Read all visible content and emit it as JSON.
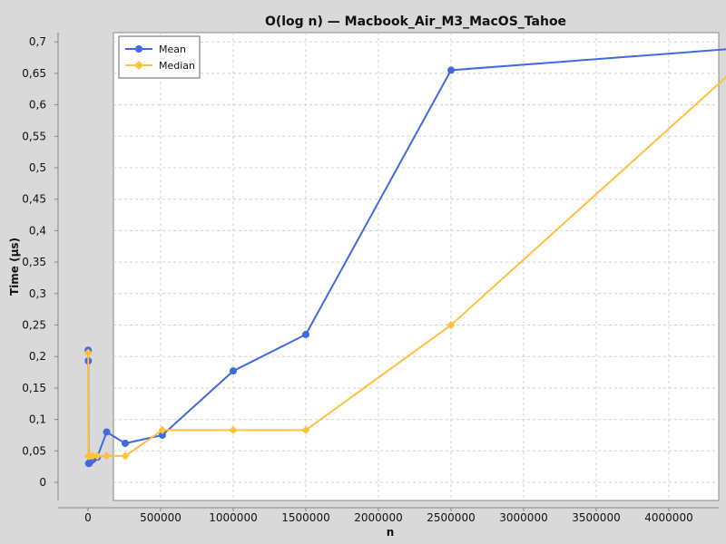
{
  "chart_data": {
    "type": "line",
    "title": "O(log n) — Macbook_Air_M3_MacOS_Tahoe",
    "xlabel": "n",
    "ylabel": "Time (µs)",
    "xlim": [
      0,
      4700000
    ],
    "ylim": [
      0,
      0.73
    ],
    "x_ticks": [
      0,
      500000,
      1000000,
      1500000,
      2000000,
      2500000,
      3000000,
      3500000,
      4000000
    ],
    "x_tick_labels": [
      "0",
      "500000",
      "1000000",
      "1500000",
      "2000000",
      "2500000",
      "3000000",
      "3500000",
      "4000000"
    ],
    "y_ticks": [
      0,
      0.05,
      0.1,
      0.15,
      0.2,
      0.25,
      0.3,
      0.35,
      0.4,
      0.45,
      0.5,
      0.55,
      0.6,
      0.65,
      0.7
    ],
    "y_tick_labels": [
      "0",
      "0,05",
      "0,1",
      "0,15",
      "0,2",
      "0,25",
      "0,3",
      "0,35",
      "0,4",
      "0,45",
      "0,5",
      "0,55",
      "0,6",
      "0,65",
      "0,7"
    ],
    "grid": true,
    "legend_position": "top-left",
    "series": [
      {
        "name": "Mean",
        "color": "#4169e1",
        "marker": "circle",
        "x": [
          1000,
          2000,
          4000,
          8000,
          16000,
          32000,
          64000,
          128000,
          256000,
          512000,
          1000000,
          1500000,
          2500000,
          4500000
        ],
        "y": [
          0.21,
          0.193,
          0.03,
          0.03,
          0.033,
          0.036,
          0.04,
          0.08,
          0.062,
          0.075,
          0.177,
          0.235,
          0.655,
          0.69
        ]
      },
      {
        "name": "Median",
        "color": "#ffc03a",
        "marker": "diamond",
        "x": [
          1000,
          2000,
          4000,
          8000,
          16000,
          32000,
          64000,
          128000,
          256000,
          512000,
          1000000,
          1500000,
          2500000,
          4500000
        ],
        "y": [
          0.206,
          0.042,
          0.042,
          0.042,
          0.042,
          0.042,
          0.042,
          0.042,
          0.042,
          0.083,
          0.083,
          0.083,
          0.25,
          0.666
        ]
      }
    ]
  }
}
